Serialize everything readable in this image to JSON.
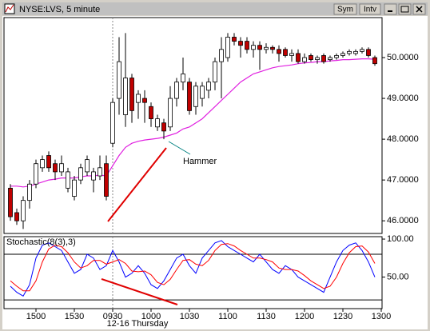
{
  "window": {
    "title": "NYSE:LVS, 5 minute",
    "buttons": [
      "Sym",
      "Intv"
    ]
  },
  "chart_data": [
    {
      "type": "candlestick",
      "open": [
        46.8,
        46.2,
        46.0,
        46.5,
        46.9,
        47.3,
        47.6,
        47.4,
        47.2,
        46.8,
        46.6,
        47.0,
        47.2,
        47.0,
        47.1,
        47.4,
        47.9,
        49.0,
        48.6,
        49.5,
        48.9,
        49.0,
        48.8,
        48.3,
        48.4,
        48.3,
        49.0,
        49.4,
        49.4,
        48.8,
        49.0,
        49.2,
        49.4,
        49.9,
        50.0,
        50.5,
        50.4,
        50.4,
        50.2,
        50.3,
        50.2,
        50.25,
        50.2,
        50.2,
        50.05,
        50.1,
        49.9,
        50.05,
        49.95,
        50.05,
        49.95,
        50.0,
        50.05,
        50.1,
        50.1,
        50.15,
        50.2,
        50.0
      ],
      "high": [
        46.9,
        46.3,
        46.6,
        47.0,
        47.5,
        47.6,
        47.7,
        47.5,
        47.6,
        47.3,
        47.1,
        47.4,
        47.6,
        47.3,
        47.6,
        47.6,
        49.0,
        50.5,
        50.6,
        49.6,
        49.2,
        49.2,
        48.9,
        48.6,
        48.5,
        49.3,
        49.5,
        50.0,
        49.5,
        49.4,
        49.4,
        49.5,
        50.0,
        50.5,
        50.6,
        50.6,
        50.5,
        50.5,
        50.4,
        50.4,
        50.35,
        50.3,
        50.3,
        50.25,
        50.2,
        50.2,
        50.1,
        50.1,
        50.05,
        50.1,
        50.05,
        50.1,
        50.15,
        50.2,
        50.2,
        50.25,
        50.25,
        50.05
      ],
      "low": [
        46.0,
        45.9,
        45.8,
        46.3,
        46.8,
        47.2,
        47.2,
        47.0,
        47.1,
        46.7,
        46.5,
        46.9,
        47.1,
        46.7,
        47.0,
        46.5,
        47.8,
        48.6,
        48.3,
        48.4,
        48.5,
        48.4,
        48.3,
        48.2,
        48.0,
        48.2,
        48.8,
        49.2,
        48.6,
        48.6,
        48.8,
        49.0,
        49.2,
        49.0,
        49.9,
        50.3,
        50.0,
        50.1,
        50.0,
        49.7,
        50.1,
        50.1,
        49.9,
        50.0,
        49.9,
        49.85,
        49.85,
        49.9,
        49.85,
        49.85,
        49.9,
        49.95,
        50.0,
        50.05,
        50.05,
        50.1,
        50.0,
        49.8
      ],
      "close": [
        46.1,
        46.0,
        46.5,
        46.9,
        47.4,
        47.5,
        47.3,
        47.2,
        47.4,
        47.2,
        47.0,
        47.3,
        47.5,
        47.2,
        47.3,
        46.6,
        48.9,
        49.9,
        49.5,
        48.7,
        49.1,
        48.9,
        48.5,
        48.5,
        48.2,
        49.0,
        49.4,
        49.6,
        48.7,
        49.3,
        49.3,
        49.4,
        49.9,
        50.2,
        50.5,
        50.4,
        50.3,
        50.2,
        50.3,
        50.2,
        50.25,
        50.2,
        50.1,
        50.05,
        50.1,
        49.9,
        50.0,
        49.95,
        50.0,
        49.9,
        50.0,
        50.05,
        50.1,
        50.15,
        50.15,
        50.2,
        50.05,
        49.85
      ],
      "up_color": "#ffffff",
      "down_color": "#c00000",
      "overlay": {
        "color": "#e020e0",
        "values": [
          46.85,
          46.85,
          46.83,
          46.85,
          46.9,
          46.95,
          47.0,
          47.02,
          47.05,
          47.05,
          47.05,
          47.08,
          47.1,
          47.1,
          47.12,
          47.1,
          47.35,
          47.6,
          47.8,
          47.9,
          47.95,
          47.98,
          48.0,
          48.02,
          48.05,
          48.1,
          48.15,
          48.25,
          48.3,
          48.4,
          48.5,
          48.65,
          48.8,
          48.95,
          49.1,
          49.25,
          49.4,
          49.5,
          49.6,
          49.65,
          49.7,
          49.75,
          49.78,
          49.8,
          49.82,
          49.85,
          49.87,
          49.88,
          49.9,
          49.9,
          49.92,
          49.93,
          49.95,
          49.95,
          49.96,
          49.97,
          49.97,
          49.96
        ]
      },
      "ylim": [
        45.69,
        50.98
      ],
      "yticks": [
        {
          "value": 50,
          "label": "50.0000"
        },
        {
          "value": 49,
          "label": "49.0000"
        },
        {
          "value": 48,
          "label": "48.0000"
        },
        {
          "value": 47,
          "label": "47.0000"
        },
        {
          "value": 46,
          "label": "46.0000"
        }
      ],
      "annotation": "Hammer"
    },
    {
      "type": "line",
      "title": "Stochastic(8(3),3)",
      "series": [
        {
          "color": "#0000ff",
          "values": [
            38,
            30,
            25,
            40,
            75,
            92,
            95,
            90,
            85,
            70,
            55,
            60,
            80,
            75,
            60,
            65,
            85,
            70,
            50,
            55,
            65,
            55,
            40,
            35,
            45,
            60,
            75,
            80,
            65,
            55,
            75,
            85,
            95,
            98,
            90,
            85,
            80,
            75,
            70,
            80,
            70,
            60,
            55,
            65,
            60,
            50,
            45,
            40,
            35,
            30,
            50,
            70,
            85,
            92,
            95,
            85,
            70,
            50
          ]
        },
        {
          "color": "#ff0000",
          "values": [
            45,
            38,
            32,
            32,
            45,
            70,
            87,
            92,
            90,
            82,
            70,
            62,
            65,
            72,
            72,
            67,
            70,
            73,
            68,
            58,
            57,
            58,
            53,
            43,
            40,
            47,
            60,
            72,
            73,
            67,
            65,
            72,
            85,
            93,
            94,
            91,
            85,
            80,
            75,
            75,
            73,
            70,
            62,
            60,
            60,
            58,
            52,
            45,
            40,
            35,
            38,
            50,
            68,
            82,
            90,
            91,
            83,
            68
          ]
        }
      ],
      "ylim": [
        8.5,
        103.2
      ],
      "yticks": [
        {
          "value": 100,
          "label": "100.00"
        },
        {
          "value": 50,
          "label": "50.00"
        }
      ],
      "levels": [
        80,
        20
      ],
      "xlim": [
        -1,
        58.125
      ],
      "xticks": [
        {
          "value": 4,
          "label": "1500"
        },
        {
          "value": 10,
          "label": "1530"
        },
        {
          "value": 16,
          "label": "0930"
        },
        {
          "value": 22,
          "label": "1000"
        },
        {
          "value": 28,
          "label": "1030"
        },
        {
          "value": 34,
          "label": "1100"
        },
        {
          "value": 40,
          "label": "1130"
        },
        {
          "value": 46,
          "label": "1200"
        },
        {
          "value": 52,
          "label": "1230"
        },
        {
          "value": 58,
          "label": "1300"
        }
      ],
      "date_label": "12-16 Thursday"
    }
  ]
}
